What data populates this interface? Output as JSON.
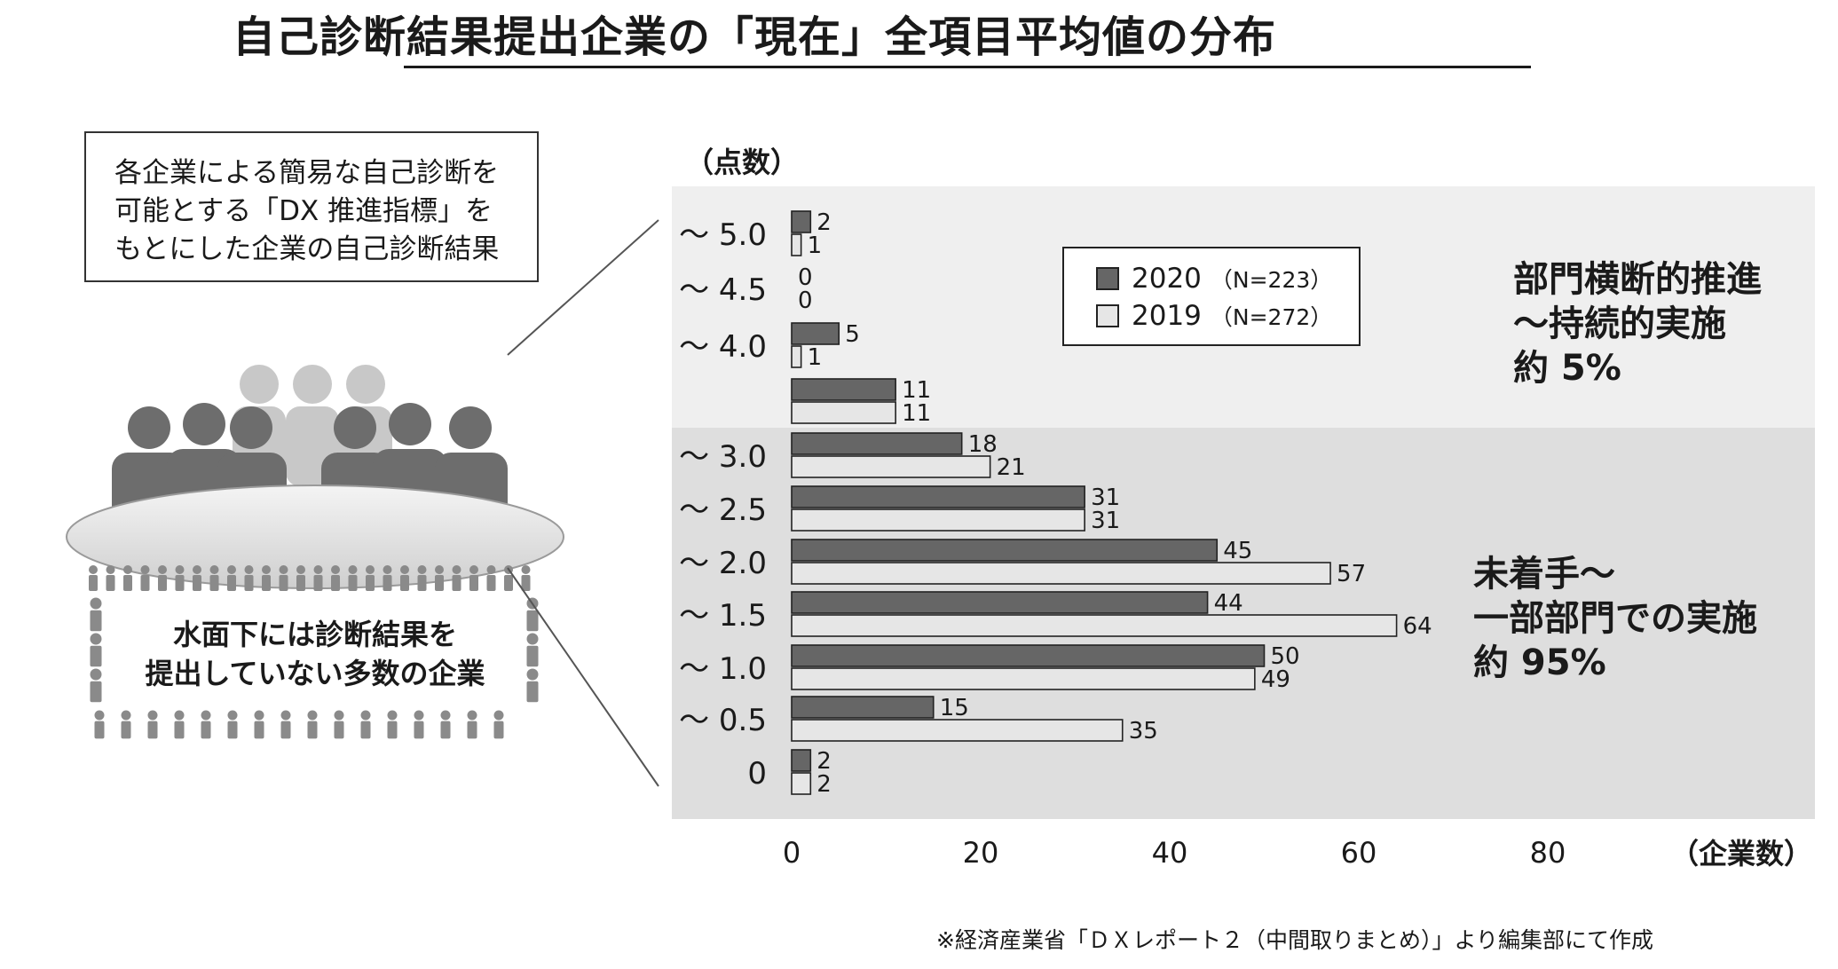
{
  "title": "自己診断結果提出企業の「現在」全項目平均値の分布",
  "note": {
    "lines": [
      "各企業による簡易な自己診断を",
      "可能とする「DX 推進指標」を",
      "もとにした企業の自己診断結果"
    ]
  },
  "crowd_caption": [
    "水面下には診断結果を",
    "提出していない多数の企業"
  ],
  "annotations": {
    "upper": [
      "部門横断的推進",
      "～持続的実施",
      "約 5%"
    ],
    "lower": [
      "未着手～",
      "一部部門での実施",
      "約 95%"
    ]
  },
  "source": "※経済産業省「ＤＸレポート２（中間取りまとめ）」より編集部にて作成",
  "colors": {
    "s2020": "#666666",
    "s2019": "#e6e6e6",
    "band_upper": "#efefef",
    "band_lower": "#dedede"
  },
  "chart_data": {
    "type": "bar",
    "orientation": "horizontal",
    "y_unit": "（点数）",
    "x_unit": "（企業数）",
    "categories": [
      "～ 5.0",
      "～ 4.5",
      "～ 4.0",
      "",
      "～ 3.0",
      "～ 2.5",
      "～ 2.0",
      "～ 1.5",
      "～ 1.0",
      "～ 0.5",
      "0"
    ],
    "series": [
      {
        "name": "2020",
        "n_label": "（N=223）",
        "values": [
          2,
          0,
          5,
          11,
          18,
          31,
          45,
          44,
          50,
          15,
          2
        ]
      },
      {
        "name": "2019",
        "n_label": "（N=272）",
        "values": [
          1,
          0,
          1,
          11,
          21,
          31,
          57,
          64,
          49,
          35,
          2
        ]
      }
    ],
    "xticks": [
      0,
      20,
      40,
      60,
      80
    ],
    "xlim": [
      0,
      105
    ],
    "grid": false,
    "legend": "top-center"
  }
}
